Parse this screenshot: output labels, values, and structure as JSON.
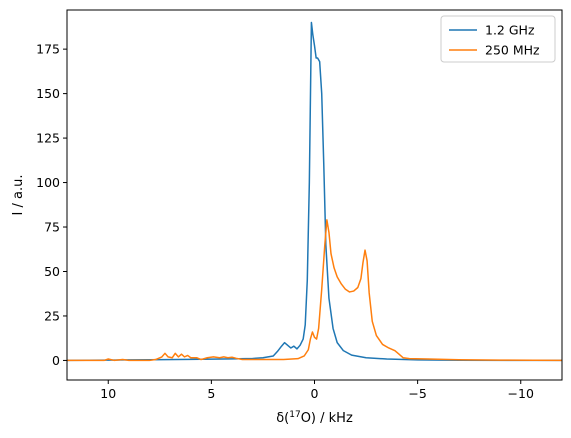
{
  "chart_data": {
    "type": "line",
    "xlabel_prefix": "δ(",
    "xlabel_sup": "17",
    "xlabel_suffix": "O) / kHz",
    "ylabel": "I / a.u.",
    "xlim": [
      12,
      -12
    ],
    "ylim": [
      -11,
      197
    ],
    "x_reversed": true,
    "x_ticks": [
      10,
      5,
      0,
      -5,
      -10
    ],
    "x_tick_labels": [
      "10",
      "5",
      "0",
      "−5",
      "−10"
    ],
    "y_ticks": [
      0,
      25,
      50,
      75,
      100,
      125,
      150,
      175
    ],
    "y_tick_labels": [
      "0",
      "25",
      "50",
      "75",
      "100",
      "125",
      "150",
      "175"
    ],
    "grid": false,
    "legend_position": "top-right",
    "series": [
      {
        "name": "1.2 GHz",
        "color": "#1f77b4",
        "points": [
          [
            12,
            0
          ],
          [
            10,
            0.2
          ],
          [
            8,
            0.4
          ],
          [
            6,
            0.6
          ],
          [
            4,
            0.9
          ],
          [
            3,
            1.1
          ],
          [
            2.5,
            1.5
          ],
          [
            2.0,
            2.5
          ],
          [
            1.8,
            5
          ],
          [
            1.6,
            8
          ],
          [
            1.45,
            10
          ],
          [
            1.3,
            8.5
          ],
          [
            1.15,
            7
          ],
          [
            1.0,
            8
          ],
          [
            0.85,
            6.5
          ],
          [
            0.7,
            8.5
          ],
          [
            0.55,
            12
          ],
          [
            0.45,
            20
          ],
          [
            0.35,
            45
          ],
          [
            0.25,
            100
          ],
          [
            0.15,
            190
          ],
          [
            0.08,
            183
          ],
          [
            0.0,
            177
          ],
          [
            -0.08,
            170
          ],
          [
            -0.15,
            170
          ],
          [
            -0.25,
            168
          ],
          [
            -0.35,
            150
          ],
          [
            -0.45,
            110
          ],
          [
            -0.55,
            65
          ],
          [
            -0.7,
            35
          ],
          [
            -0.9,
            18
          ],
          [
            -1.1,
            10
          ],
          [
            -1.4,
            5.5
          ],
          [
            -1.8,
            3
          ],
          [
            -2.5,
            1.5
          ],
          [
            -3.5,
            0.8
          ],
          [
            -5,
            0.3
          ],
          [
            -7,
            0.1
          ],
          [
            -12,
            0
          ]
        ]
      },
      {
        "name": "250 MHz",
        "color": "#ff7f0e",
        "points": [
          [
            12,
            0
          ],
          [
            10.2,
            0
          ],
          [
            10,
            0.8
          ],
          [
            9.7,
            0
          ],
          [
            9.3,
            0.5
          ],
          [
            9.0,
            0
          ],
          [
            8.0,
            0
          ],
          [
            7.7,
            0.5
          ],
          [
            7.4,
            2
          ],
          [
            7.25,
            4
          ],
          [
            7.1,
            2
          ],
          [
            6.9,
            1.5
          ],
          [
            6.75,
            4
          ],
          [
            6.6,
            2
          ],
          [
            6.45,
            3.5
          ],
          [
            6.3,
            2
          ],
          [
            6.15,
            2.8
          ],
          [
            6.0,
            1.5
          ],
          [
            5.7,
            1.5
          ],
          [
            5.5,
            0.5
          ],
          [
            5.2,
            1.5
          ],
          [
            4.9,
            2
          ],
          [
            4.6,
            1.5
          ],
          [
            4.4,
            2
          ],
          [
            4.2,
            1.5
          ],
          [
            4.0,
            1.8
          ],
          [
            3.8,
            1.2
          ],
          [
            3.5,
            0.5
          ],
          [
            2.5,
            0.5
          ],
          [
            1.5,
            0.5
          ],
          [
            0.8,
            1
          ],
          [
            0.5,
            2.5
          ],
          [
            0.3,
            6
          ],
          [
            0.2,
            12
          ],
          [
            0.1,
            16
          ],
          [
            0.0,
            13
          ],
          [
            -0.1,
            12
          ],
          [
            -0.2,
            18
          ],
          [
            -0.35,
            40
          ],
          [
            -0.5,
            65
          ],
          [
            -0.6,
            79
          ],
          [
            -0.7,
            72
          ],
          [
            -0.8,
            60
          ],
          [
            -0.95,
            52
          ],
          [
            -1.1,
            47
          ],
          [
            -1.3,
            43
          ],
          [
            -1.5,
            40
          ],
          [
            -1.7,
            38.5
          ],
          [
            -1.9,
            39
          ],
          [
            -2.1,
            41
          ],
          [
            -2.25,
            46
          ],
          [
            -2.35,
            55
          ],
          [
            -2.45,
            62
          ],
          [
            -2.55,
            56
          ],
          [
            -2.65,
            38
          ],
          [
            -2.8,
            22
          ],
          [
            -3.0,
            14
          ],
          [
            -3.3,
            9
          ],
          [
            -3.6,
            7
          ],
          [
            -3.9,
            5.5
          ],
          [
            -4.1,
            3.5
          ],
          [
            -4.3,
            1.5
          ],
          [
            -4.6,
            1
          ],
          [
            -5.5,
            0.8
          ],
          [
            -7,
            0.4
          ],
          [
            -9,
            0.2
          ],
          [
            -12,
            0
          ]
        ]
      }
    ]
  }
}
